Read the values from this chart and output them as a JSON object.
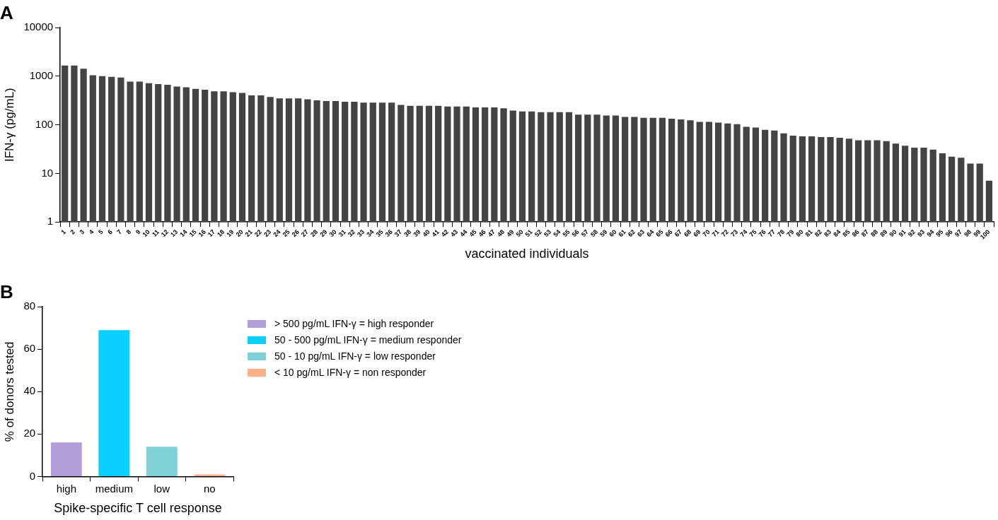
{
  "chart_data": [
    {
      "type": "bar",
      "title": "A",
      "xlabel": "vaccinated individuals",
      "ylabel": "IFN-γ (pg/mL)",
      "categories": [
        "1",
        "2",
        "3",
        "4",
        "5",
        "6",
        "7",
        "8",
        "9",
        "10",
        "11",
        "12",
        "13",
        "14",
        "15",
        "16",
        "17",
        "18",
        "19",
        "20",
        "21",
        "22",
        "23",
        "24",
        "25",
        "26",
        "27",
        "28",
        "29",
        "30",
        "31",
        "32",
        "33",
        "34",
        "35",
        "36",
        "37",
        "38",
        "39",
        "40",
        "41",
        "42",
        "43",
        "44",
        "45",
        "46",
        "47",
        "48",
        "49",
        "50",
        "51",
        "52",
        "53",
        "54",
        "55",
        "56",
        "57",
        "58",
        "59",
        "60",
        "61",
        "62",
        "63",
        "64",
        "65",
        "66",
        "67",
        "68",
        "69",
        "70",
        "71",
        "72",
        "73",
        "74",
        "75",
        "76",
        "77",
        "78",
        "79",
        "80",
        "81",
        "82",
        "83",
        "84",
        "85",
        "86",
        "87",
        "88",
        "89",
        "90",
        "91",
        "92",
        "93",
        "94",
        "95",
        "96",
        "97",
        "98",
        "99",
        "100"
      ],
      "values": [
        1660,
        1660,
        1430,
        1050,
        1010,
        975,
        940,
        775,
        775,
        720,
        690,
        665,
        615,
        595,
        550,
        530,
        490,
        490,
        470,
        455,
        405,
        405,
        375,
        350,
        350,
        350,
        335,
        320,
        310,
        310,
        300,
        300,
        287,
        287,
        287,
        287,
        256,
        247,
        247,
        247,
        247,
        238,
        238,
        238,
        229,
        229,
        229,
        220,
        196,
        189,
        189,
        182,
        182,
        182,
        182,
        162,
        162,
        162,
        156,
        156,
        145,
        145,
        139,
        139,
        139,
        134,
        129,
        124,
        115,
        115,
        111,
        107,
        103,
        91,
        88,
        79,
        76,
        67,
        60,
        58,
        58,
        56,
        56,
        54,
        52,
        48,
        48,
        48,
        46,
        41,
        37,
        34,
        34,
        31,
        26,
        22,
        21,
        16,
        16,
        7.1
      ],
      "color": "#444444",
      "log": "y",
      "ylim": [
        1,
        10000
      ],
      "yticks": [
        1,
        10,
        100,
        1000,
        10000
      ]
    },
    {
      "type": "bar",
      "title": "B",
      "xlabel": "Spike-specific T cell response",
      "ylabel": "% of donors tested",
      "categories": [
        "high",
        "medium",
        "low",
        "no"
      ],
      "series": [
        {
          "name": "> 500 pg/mL IFN-γ = high responder",
          "color": "#b39ddb",
          "values": [
            16,
            null,
            null,
            null
          ]
        },
        {
          "name": "50 - 500 pg/mL IFN-γ = medium responder",
          "color": "#0acfff",
          "values": [
            null,
            69,
            null,
            null
          ]
        },
        {
          "name": "50 - 10 pg/mL IFN-γ = low responder",
          "color": "#80d0d8",
          "values": [
            null,
            null,
            14,
            null
          ]
        },
        {
          "name": "< 10 pg/mL IFN-γ = non responder",
          "color": "#ffb08a",
          "values": [
            null,
            null,
            null,
            1
          ]
        }
      ],
      "ylim": [
        0,
        80
      ],
      "yticks": [
        0,
        20,
        40,
        60,
        80
      ],
      "legend": "top right"
    }
  ]
}
